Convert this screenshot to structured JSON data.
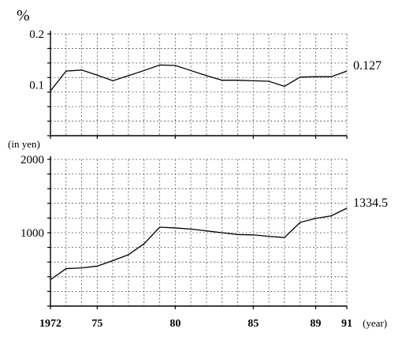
{
  "chart_data": [
    {
      "type": "line",
      "unit_label": "%",
      "ylim": [
        0,
        0.2
      ],
      "yticks": [
        {
          "value": 0.1,
          "label": "0.1"
        },
        {
          "value": 0.2,
          "label": "0.2"
        }
      ],
      "xlim": [
        1972,
        1991
      ],
      "grid": true,
      "end_label": "0.127",
      "series": [
        {
          "x": [
            1972,
            1973,
            1974,
            1975,
            1976,
            1977,
            1978,
            1979,
            1980,
            1981,
            1982,
            1983,
            1984,
            1985,
            1986,
            1987,
            1988,
            1989,
            1990,
            1991
          ],
          "y": [
            0.088,
            0.127,
            0.129,
            0.119,
            0.108,
            0.118,
            0.128,
            0.139,
            0.138,
            0.128,
            0.118,
            0.109,
            0.109,
            0.108,
            0.107,
            0.097,
            0.115,
            0.116,
            0.116,
            0.127
          ]
        }
      ]
    },
    {
      "type": "line",
      "unit_label": "(in yen)",
      "ylim": [
        0,
        2000
      ],
      "yticks": [
        {
          "value": 1000,
          "label": "1000"
        },
        {
          "value": 2000,
          "label": "2000"
        }
      ],
      "xlim": [
        1972,
        1991
      ],
      "grid": true,
      "end_label": "1334.5",
      "series": [
        {
          "x": [
            1972,
            1973,
            1974,
            1975,
            1976,
            1977,
            1978,
            1979,
            1980,
            1981,
            1982,
            1983,
            1984,
            1985,
            1986,
            1987,
            1988,
            1989,
            1990,
            1991
          ],
          "y": [
            360,
            510,
            520,
            545,
            620,
            700,
            850,
            1075,
            1065,
            1050,
            1025,
            1000,
            975,
            970,
            950,
            935,
            1140,
            1195,
            1230,
            1334.5
          ]
        }
      ]
    }
  ],
  "x_axis": {
    "ticks": [
      {
        "year": 1972,
        "label": "1972"
      },
      {
        "year": 1975,
        "label": "75"
      },
      {
        "year": 1980,
        "label": "80"
      },
      {
        "year": 1985,
        "label": "85"
      },
      {
        "year": 1989,
        "label": "89"
      },
      {
        "year": 1991,
        "label": "91"
      }
    ],
    "unit_label": "(year)"
  }
}
